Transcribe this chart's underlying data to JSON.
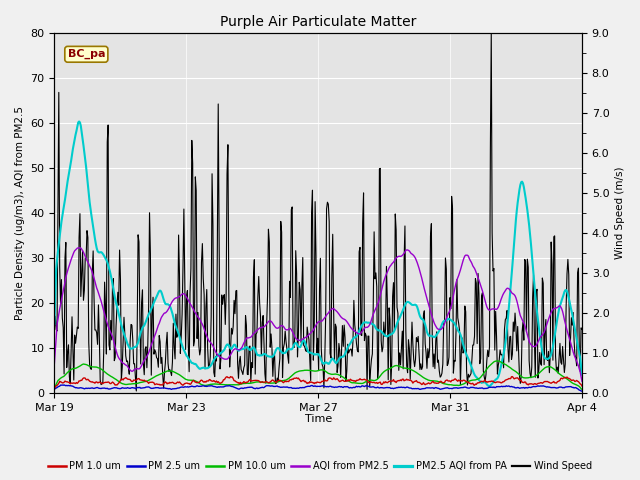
{
  "title": "Purple Air Particulate Matter",
  "xlabel": "Time",
  "ylabel_left": "Particle Density (ug/m3), AQI from PM2.5",
  "ylabel_right": "Wind Speed (m/s)",
  "ylim_left": [
    0,
    80
  ],
  "ylim_right": [
    0,
    9.0
  ],
  "yticks_left": [
    0,
    10,
    20,
    30,
    40,
    50,
    60,
    70,
    80
  ],
  "yticks_right": [
    0.0,
    1.0,
    2.0,
    3.0,
    4.0,
    5.0,
    6.0,
    7.0,
    8.0,
    9.0
  ],
  "xtick_labels": [
    "Mar 19",
    "Mar 23",
    "Mar 27",
    "Mar 31",
    "Apr 4"
  ],
  "box_label": "BC_pa",
  "background_color": "#f0f0f0",
  "plot_bg_color": "#e4e4e4",
  "legend_items": [
    {
      "label": "PM 1.0 um",
      "color": "#cc0000",
      "lw": 1.0
    },
    {
      "label": "PM 2.5 um",
      "color": "#0000cc",
      "lw": 1.0
    },
    {
      "label": "PM 10.0 um",
      "color": "#00bb00",
      "lw": 1.0
    },
    {
      "label": "AQI from PM2.5",
      "color": "#9900cc",
      "lw": 1.0
    },
    {
      "label": "PM2.5 AQI from PA",
      "color": "#00cccc",
      "lw": 1.5
    },
    {
      "label": "Wind Speed",
      "color": "#000000",
      "lw": 0.8
    }
  ],
  "n_points": 600,
  "seed": 7
}
